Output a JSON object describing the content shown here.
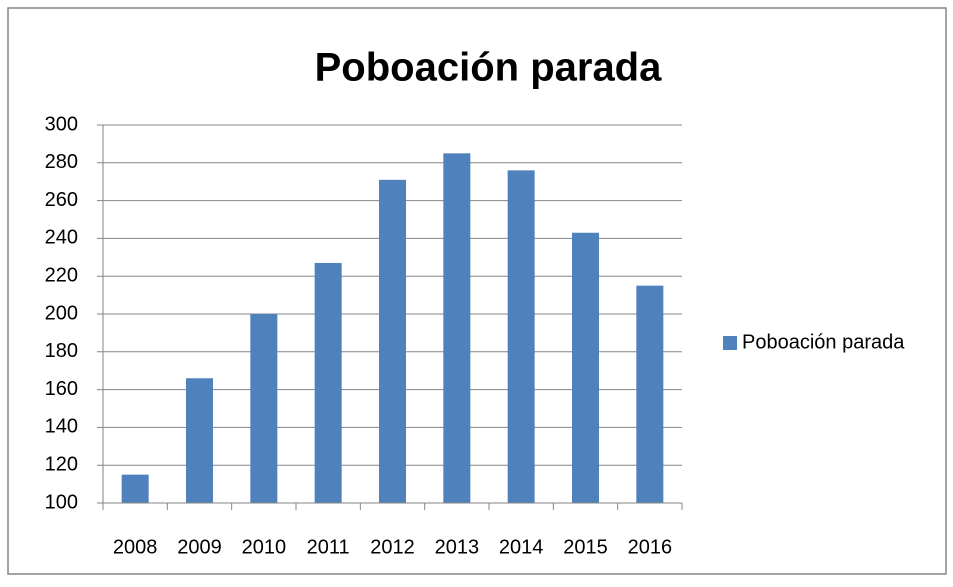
{
  "chart_data": {
    "type": "bar",
    "title": "Poboación parada",
    "categories": [
      "2008",
      "2009",
      "2010",
      "2011",
      "2012",
      "2013",
      "2014",
      "2015",
      "2016"
    ],
    "series": [
      {
        "name": "Poboación parada",
        "color": "#4f81bd",
        "values": [
          115,
          166,
          200,
          227,
          271,
          285,
          276,
          243,
          215
        ]
      }
    ],
    "ylim": [
      100,
      300
    ],
    "yticks": [
      100,
      120,
      140,
      160,
      180,
      200,
      220,
      240,
      260,
      280,
      300
    ],
    "grid": true,
    "legend": "right"
  }
}
